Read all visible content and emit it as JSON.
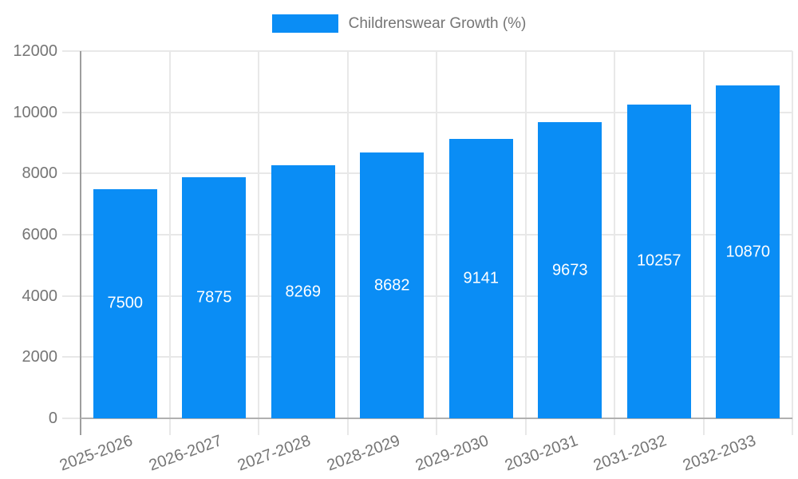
{
  "legend": {
    "label": "Childrenswear Growth (%)"
  },
  "colors": {
    "bar": "#0a8df5",
    "grid": "#e8e8e8",
    "axis_y": "#9e9e9e",
    "axis_x": "#b0b0b0",
    "tick_text": "#757575",
    "value_label": "#ffffff"
  },
  "chart_data": {
    "type": "bar",
    "title": "Childrenswear Growth (%)",
    "categories": [
      "2025-2026",
      "2026-2027",
      "2027-2028",
      "2028-2029",
      "2029-2030",
      "2030-2031",
      "2031-2032",
      "2032-2033"
    ],
    "values": [
      7500,
      7875,
      8269,
      8682,
      9141,
      9673,
      10257,
      10870
    ],
    "value_labels": [
      "7500",
      "7875",
      "8269",
      "8682",
      "9141",
      "9673",
      "10257",
      "10870"
    ],
    "xlabel": "",
    "ylabel": "",
    "ylim": [
      0,
      12000
    ],
    "yticks": [
      0,
      2000,
      4000,
      6000,
      8000,
      10000,
      12000
    ],
    "ytick_labels": [
      "0",
      "2000",
      "4000",
      "6000",
      "8000",
      "10000",
      "12000"
    ],
    "grid": true,
    "legend_position": "top",
    "value_labels_inside_bars": true
  }
}
